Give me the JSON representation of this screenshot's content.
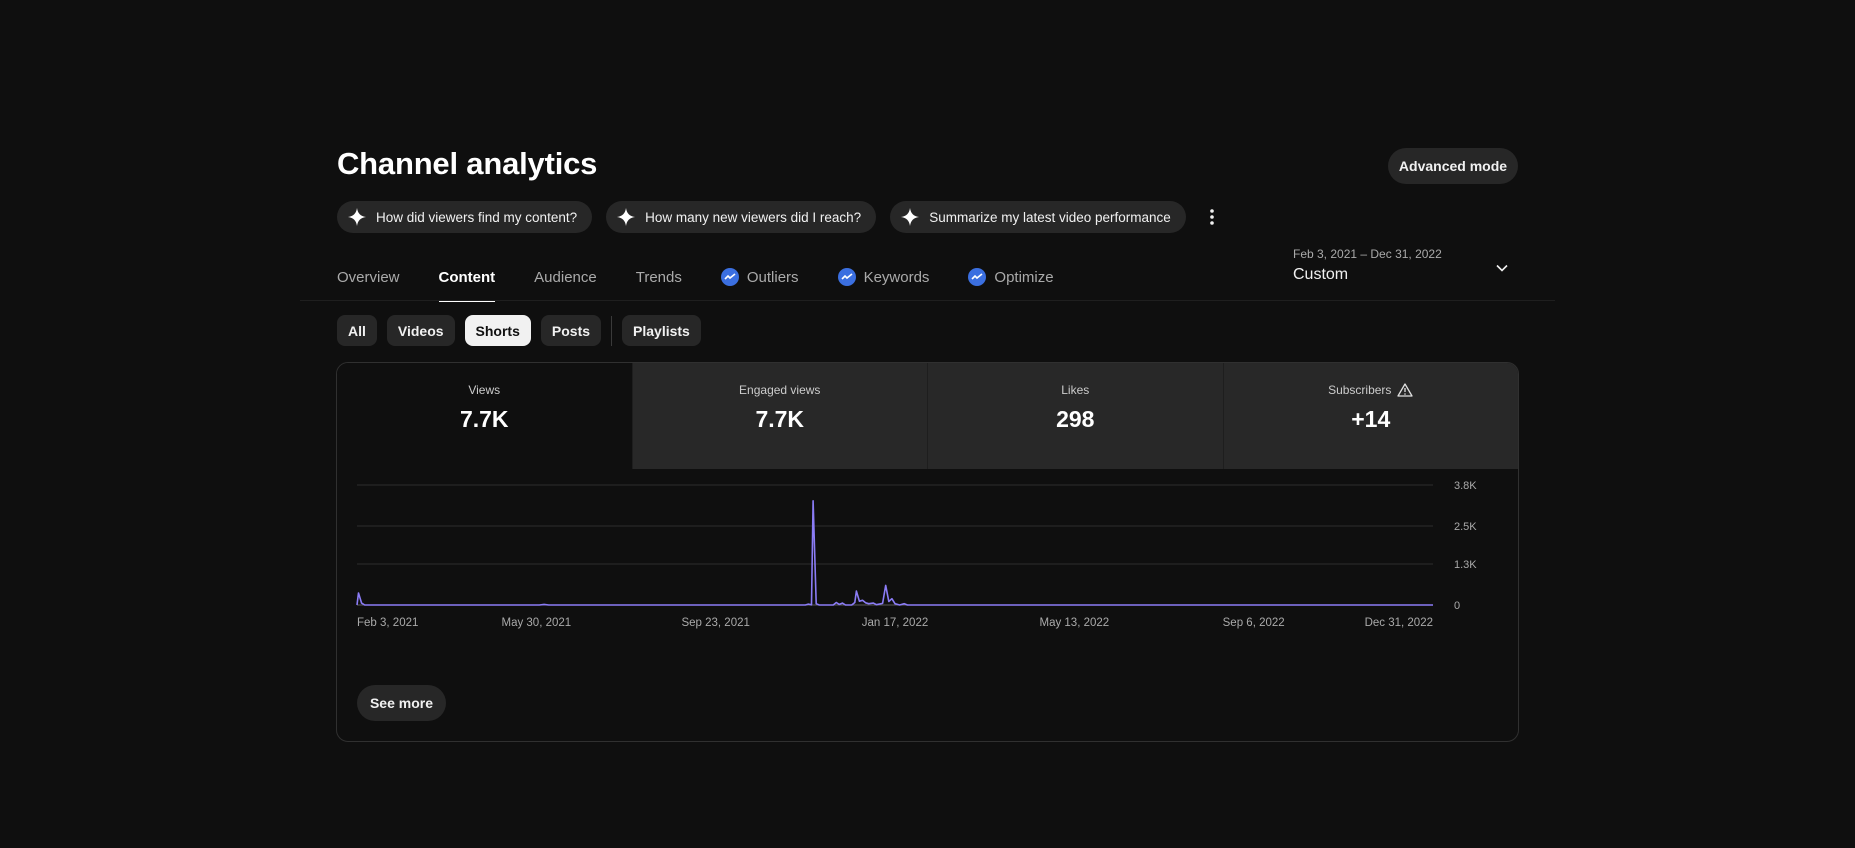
{
  "header": {
    "title": "Channel analytics",
    "advanced_mode_label": "Advanced mode"
  },
  "ai_prompts": [
    {
      "label": "How did viewers find my content?",
      "icon": "sparkle-icon"
    },
    {
      "label": "How many new viewers did I reach?",
      "icon": "sparkle-icon"
    },
    {
      "label": "Summarize my latest video performance",
      "icon": "sparkle-icon"
    }
  ],
  "tabs": [
    {
      "label": "Overview",
      "active": false,
      "badge": false
    },
    {
      "label": "Content",
      "active": true,
      "badge": false
    },
    {
      "label": "Audience",
      "active": false,
      "badge": false
    },
    {
      "label": "Trends",
      "active": false,
      "badge": false
    },
    {
      "label": "Outliers",
      "active": false,
      "badge": true
    },
    {
      "label": "Keywords",
      "active": false,
      "badge": true
    },
    {
      "label": "Optimize",
      "active": false,
      "badge": true
    }
  ],
  "date_range": {
    "range": "Feb 3, 2021 – Dec 31, 2022",
    "preset": "Custom"
  },
  "filters": [
    {
      "label": "All",
      "active": false
    },
    {
      "label": "Videos",
      "active": false
    },
    {
      "label": "Shorts",
      "active": true
    },
    {
      "label": "Posts",
      "active": false
    },
    {
      "label": "Playlists",
      "active": false
    }
  ],
  "metrics": [
    {
      "label": "Views",
      "value": "7.7K",
      "selected": true,
      "warning": false
    },
    {
      "label": "Engaged views",
      "value": "7.7K",
      "selected": false,
      "warning": false
    },
    {
      "label": "Likes",
      "value": "298",
      "selected": false,
      "warning": false
    },
    {
      "label": "Subscribers",
      "value": "+14",
      "selected": false,
      "warning": true
    }
  ],
  "see_more_label": "See more",
  "colors": {
    "background": "#0f0f0f",
    "chip": "#272727",
    "badge": "#3b6fe0",
    "line": "#8b7cf6"
  },
  "chart_data": {
    "type": "line",
    "x_ticks": [
      "Feb 3, 2021",
      "May 30, 2021",
      "Sep 23, 2021",
      "Jan 17, 2022",
      "May 13, 2022",
      "Sep 6, 2022",
      "Dec 31, 2022"
    ],
    "y_ticks": [
      "3.8K",
      "2.5K",
      "1.3K",
      "0"
    ],
    "y_tick_values": [
      3800,
      2500,
      1300,
      0
    ],
    "ylim": [
      0,
      3800
    ],
    "xlim": [
      "2021-02-03",
      "2022-12-31"
    ],
    "grid": true,
    "series": [
      {
        "values": [
          [
            "2021-02-03",
            0
          ],
          [
            "2021-02-04",
            380
          ],
          [
            "2021-02-06",
            60
          ],
          [
            "2021-02-08",
            0
          ],
          [
            "2021-06-01",
            0
          ],
          [
            "2021-06-04",
            20
          ],
          [
            "2021-06-07",
            0
          ],
          [
            "2021-11-20",
            0
          ],
          [
            "2021-11-22",
            30
          ],
          [
            "2021-11-24",
            5
          ],
          [
            "2021-11-25",
            3300
          ],
          [
            "2021-11-27",
            40
          ],
          [
            "2021-11-29",
            0
          ],
          [
            "2021-12-08",
            0
          ],
          [
            "2021-12-10",
            80
          ],
          [
            "2021-12-12",
            20
          ],
          [
            "2021-12-14",
            60
          ],
          [
            "2021-12-16",
            0
          ],
          [
            "2021-12-20",
            0
          ],
          [
            "2021-12-22",
            80
          ],
          [
            "2021-12-23",
            440
          ],
          [
            "2021-12-25",
            120
          ],
          [
            "2021-12-27",
            150
          ],
          [
            "2021-12-29",
            70
          ],
          [
            "2021-12-31",
            40
          ],
          [
            "2022-01-03",
            60
          ],
          [
            "2022-01-05",
            10
          ],
          [
            "2022-01-09",
            50
          ],
          [
            "2022-01-11",
            620
          ],
          [
            "2022-01-13",
            110
          ],
          [
            "2022-01-15",
            200
          ],
          [
            "2022-01-17",
            40
          ],
          [
            "2022-01-20",
            0
          ],
          [
            "2022-01-23",
            40
          ],
          [
            "2022-01-25",
            0
          ],
          [
            "2022-12-31",
            0
          ]
        ]
      }
    ]
  }
}
